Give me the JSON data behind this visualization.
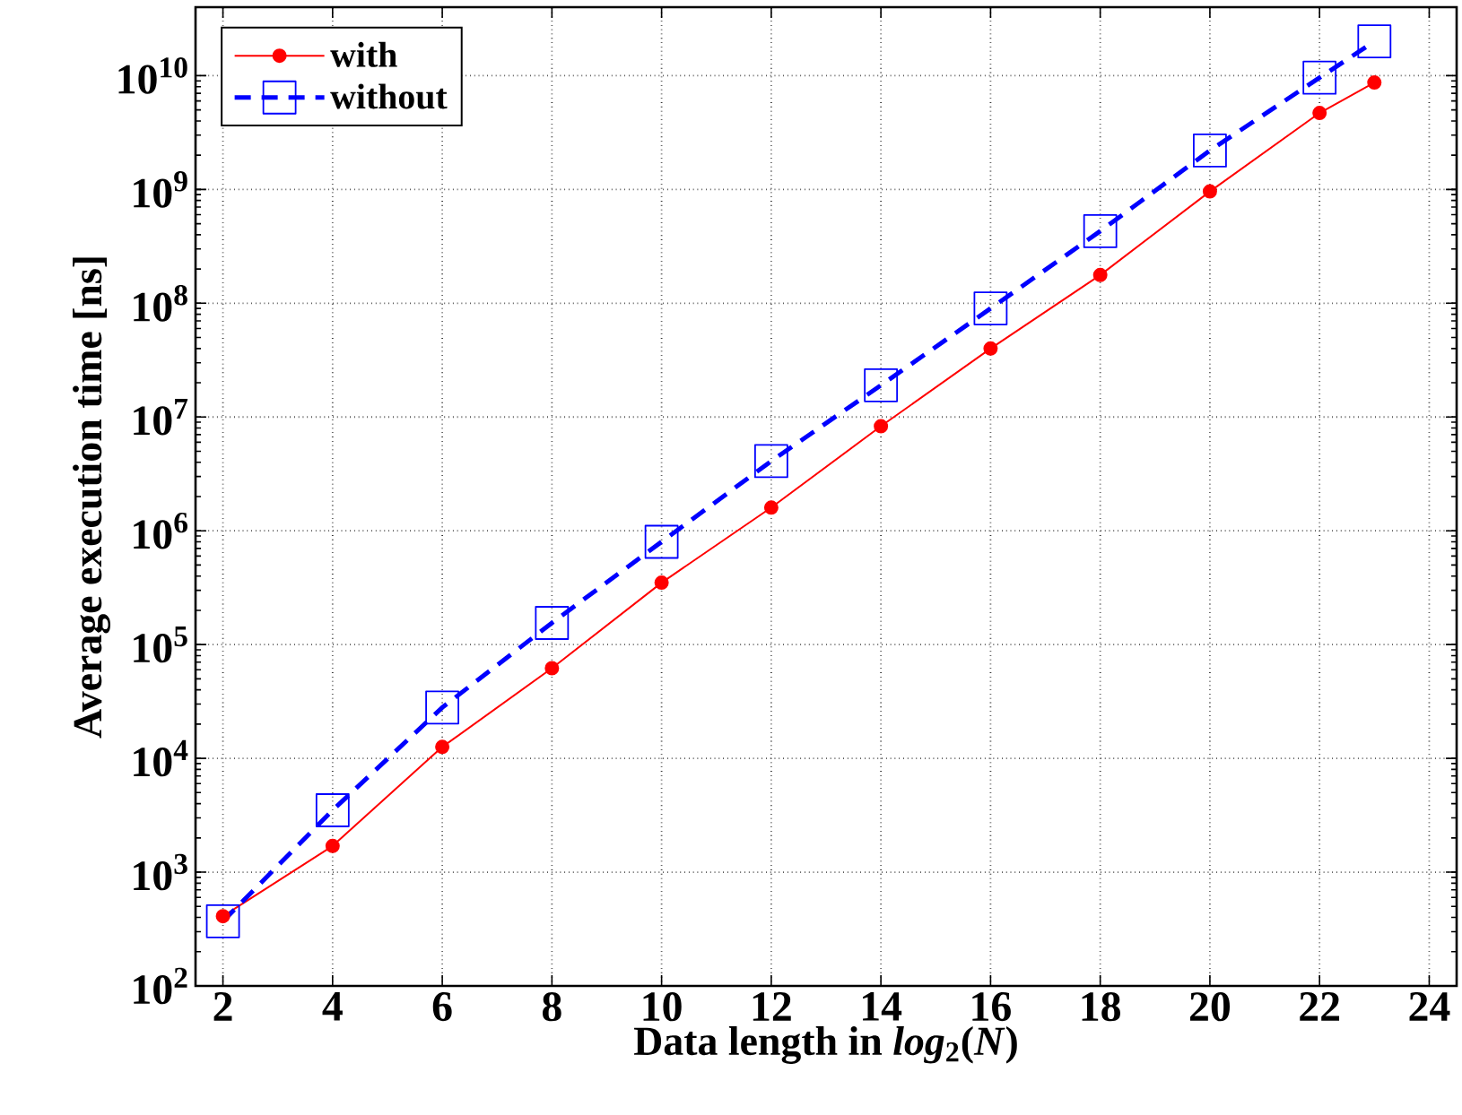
{
  "chart_data": {
    "type": "line",
    "xlabel": "Data length in *log*$_{2}$(*N*)",
    "ylabel": "Average execution time [ns]",
    "xlim": [
      1.5,
      24.5
    ],
    "xticks": [
      2,
      4,
      6,
      8,
      10,
      12,
      14,
      16,
      18,
      20,
      22,
      24
    ],
    "ylim": [
      100,
      40000000000
    ],
    "yticks": [
      {
        "value": 100,
        "label": "10$^{2}$"
      },
      {
        "value": 1000,
        "label": "10$^{3}$"
      },
      {
        "value": 10000,
        "label": "10$^{4}$"
      },
      {
        "value": 100000,
        "label": "10$^{5}$"
      },
      {
        "value": 1000000,
        "label": "10$^{6}$"
      },
      {
        "value": 10000000,
        "label": "10$^{7}$"
      },
      {
        "value": 100000000,
        "label": "10$^{8}$"
      },
      {
        "value": 1000000000,
        "label": "10$^{9}$"
      },
      {
        "value": 10000000000,
        "label": "10$^{10}$"
      }
    ],
    "log": "y",
    "grid": true,
    "legend": "top left",
    "x": [
      2,
      4,
      6,
      8,
      10,
      12,
      14,
      16,
      18,
      20,
      22,
      23
    ],
    "series": [
      {
        "name": "with",
        "color": "#ff0000",
        "marker": "circle",
        "line_style": "solid",
        "values": [
          410,
          1700,
          12600,
          62000,
          350000,
          1600000,
          8300000,
          40000000,
          177000000,
          960000000,
          4700000000,
          8700000000
        ]
      },
      {
        "name": "without",
        "color": "#0000ff",
        "marker": "square",
        "line_style": "dashed",
        "values": [
          370,
          3500,
          28000,
          155000,
          800000,
          4100000,
          19000000,
          90000000,
          430000000,
          2200000000,
          9600000000,
          20000000000
        ]
      }
    ]
  }
}
